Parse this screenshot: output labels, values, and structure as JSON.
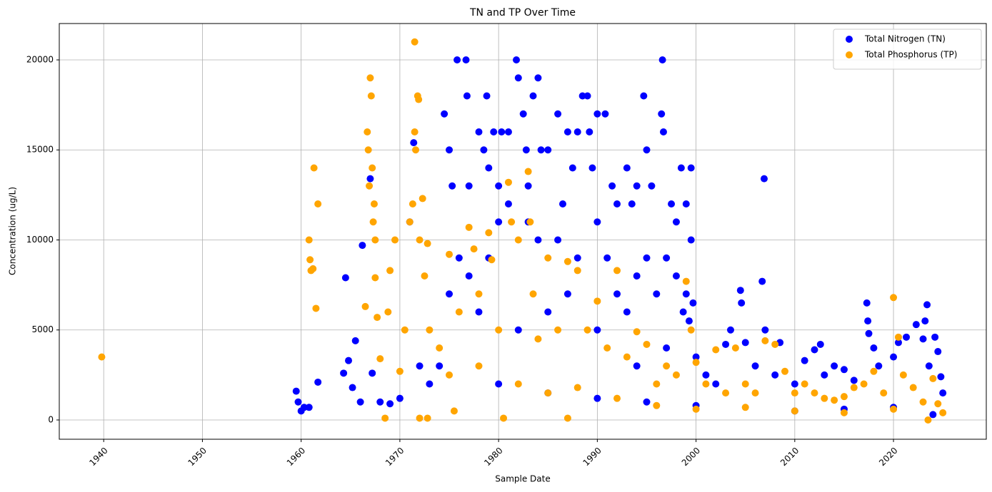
{
  "chart_data": {
    "type": "scatter",
    "title": "TN and TP Over Time",
    "x_label": "Sample Date",
    "y_label": "Concentration (ug/L)",
    "xlim": [
      1935.5,
      2029.4
    ],
    "ylim": [
      -1070,
      22020
    ],
    "xticks": [
      1940,
      1950,
      1960,
      1970,
      1980,
      1990,
      2000,
      2010,
      2020
    ],
    "yticks": [
      0,
      5000,
      10000,
      15000,
      20000
    ],
    "grid": true,
    "legend": "upper right",
    "series": [
      {
        "name": "Total Nitrogen (TN)",
        "color": "#0000ff",
        "x": [
          1959.5,
          1959.7,
          1960,
          1960.3,
          1960.8,
          1961.7,
          1964.5,
          1964.3,
          1964.8,
          1965.2,
          1965.5,
          1966,
          1966.2,
          1967,
          1967.2,
          1968,
          1969,
          1970,
          1971.4,
          1971,
          1972,
          1973,
          1974.5,
          1975,
          1975.3,
          1975.8,
          1976.7,
          1976.8,
          1977,
          1978,
          1978.5,
          1978.8,
          1979,
          1979.5,
          1980,
          1980.3,
          1981,
          1981.8,
          1982,
          1982.5,
          1982.8,
          1983,
          1983.5,
          1984,
          1984.3,
          1985,
          1986,
          1986.5,
          1987,
          1987.5,
          1988,
          1988.5,
          1989,
          1989.2,
          1989.5,
          1990,
          1990,
          1990.8,
          1991.5,
          1992,
          1993,
          1993.5,
          1994,
          1994.7,
          1995,
          1995.5,
          1996.5,
          1996.6,
          1996.7,
          1997.5,
          1998,
          1998.5,
          1999,
          1999.5,
          1999.5,
          1999,
          1999.3,
          1998.7,
          1999.7,
          1998,
          1997,
          1996,
          1995,
          1994,
          1993,
          1992,
          1991,
          1988,
          1986,
          1984,
          1983,
          1981,
          1980,
          1979,
          1978,
          1977,
          1976,
          1975,
          1974,
          1982,
          1985,
          1987,
          1990,
          1994,
          1997,
          2000,
          2001,
          2002,
          2003,
          2003.5,
          2004.5,
          2004.6,
          2005,
          2006,
          2006.7,
          2006.9,
          2007,
          2008,
          2008.5,
          2010,
          2011,
          2012,
          2012.6,
          2013,
          2014,
          2015,
          2016,
          2017.3,
          2017.4,
          2017.5,
          2018,
          2018.5,
          2020,
          2020.5,
          2021.3,
          2022.3,
          2023,
          2023.2,
          2023.4,
          2023.6,
          2024.2,
          2024.5,
          2024.8,
          2025,
          1980,
          1985,
          1990,
          1995,
          2000,
          2010,
          2015,
          2020,
          2024
        ],
        "values": [
          1600,
          1000,
          500,
          700,
          700,
          2100,
          7900,
          2600,
          3300,
          1800,
          4400,
          1000,
          9700,
          13400,
          2600,
          1000,
          900,
          1200,
          15400,
          11000,
          3000,
          2000,
          17000,
          15000,
          13000,
          20000,
          20000,
          18000,
          13000,
          16000,
          15000,
          18000,
          14000,
          16000,
          13000,
          16000,
          16000,
          20000,
          19000,
          17000,
          15000,
          13000,
          18000,
          19000,
          15000,
          15000,
          17000,
          12000,
          16000,
          14000,
          16000,
          18000,
          18000,
          16000,
          14000,
          17000,
          11000,
          17000,
          13000,
          12000,
          14000,
          12000,
          13000,
          18000,
          15000,
          13000,
          17000,
          20000,
          16000,
          12000,
          11000,
          14000,
          12000,
          14000,
          10000,
          7000,
          5500,
          6000,
          6500,
          8000,
          9000,
          7000,
          9000,
          8000,
          6000,
          7000,
          9000,
          9000,
          10000,
          10000,
          11000,
          12000,
          11000,
          9000,
          6000,
          8000,
          9000,
          7000,
          3000,
          5000,
          6000,
          7000,
          5000,
          3000,
          4000,
          3500,
          2500,
          2000,
          4200,
          5000,
          7200,
          6500,
          4300,
          3000,
          7700,
          13400,
          5000,
          2500,
          4300,
          2000,
          3300,
          3900,
          4200,
          2500,
          3000,
          2800,
          2200,
          6500,
          5500,
          4800,
          4000,
          3000,
          3500,
          4300,
          4600,
          5300,
          4500,
          5500,
          6400,
          3000,
          4600,
          3800,
          2400,
          1500,
          2000,
          1500,
          1200,
          1000,
          800,
          500,
          600,
          700,
          300
        ]
      },
      {
        "name": "Total Phosphorus (TP)",
        "color": "#ffa500",
        "x": [
          1939.8,
          1960.8,
          1960.9,
          1961.0,
          1961.2,
          1961.3,
          1961.5,
          1961.7,
          1966.5,
          1966.7,
          1966.8,
          1966.9,
          1967,
          1967.1,
          1967.2,
          1967.3,
          1967.4,
          1967.5,
          1967.5,
          1967.7,
          1968,
          1968.5,
          1968.8,
          1969,
          1969.5,
          1970,
          1970.5,
          1971,
          1971.3,
          1971.5,
          1971.5,
          1971.6,
          1971.8,
          1971.9,
          1972,
          1972.3,
          1972.5,
          1972.8,
          1972,
          1972.8,
          1973,
          1974,
          1975,
          1975.5,
          1976,
          1977,
          1977.5,
          1978,
          1979,
          1979.3,
          1980,
          1980.5,
          1981,
          1981.3,
          1982,
          1983,
          1983.2,
          1983.5,
          1984,
          1985,
          1986,
          1987,
          1987,
          1988,
          1989,
          1990,
          1991,
          1992,
          1993,
          1994,
          1995,
          1996,
          1997,
          1998,
          1999,
          1999.5,
          2000,
          2001,
          2002,
          2003,
          2004,
          2005,
          2006,
          2007,
          2008,
          2009,
          2010,
          2011,
          2012,
          2013,
          2014,
          2015,
          2016,
          2017,
          2018,
          2019,
          2020,
          2020.5,
          2021,
          2022,
          2023,
          2023.5,
          2024,
          2024.5,
          2025,
          1975,
          1978,
          1982,
          1985,
          1988,
          1992,
          1996,
          2000,
          2005,
          2010,
          2015,
          2020
        ],
        "values": [
          3500,
          10000,
          8900,
          8300,
          8400,
          14000,
          6200,
          12000,
          6300,
          16000,
          15000,
          13000,
          19000,
          18000,
          14000,
          11000,
          12000,
          10000,
          7900,
          5700,
          3400,
          100,
          6000,
          8300,
          10000,
          2700,
          5000,
          11000,
          12000,
          21000,
          16000,
          15000,
          18000,
          17800,
          10000,
          12300,
          8000,
          9800,
          100,
          100,
          5000,
          4000,
          9200,
          500,
          6000,
          10700,
          9500,
          7000,
          10400,
          8900,
          5000,
          100,
          13200,
          11000,
          10000,
          13800,
          11000,
          7000,
          4500,
          9000,
          5000,
          8800,
          100,
          8300,
          5000,
          6600,
          4000,
          8300,
          3500,
          4900,
          4200,
          2000,
          3000,
          2500,
          7700,
          5000,
          3200,
          2000,
          3900,
          1500,
          4000,
          2000,
          1500,
          4400,
          4200,
          2700,
          1500,
          2000,
          1500,
          1200,
          1100,
          1300,
          1800,
          2000,
          2700,
          1500,
          6800,
          4600,
          2500,
          1800,
          1000,
          0,
          2300,
          900,
          400,
          2500,
          3000,
          2000,
          1500,
          1800,
          1200,
          800,
          600,
          700,
          500,
          400,
          600
        ]
      }
    ]
  }
}
